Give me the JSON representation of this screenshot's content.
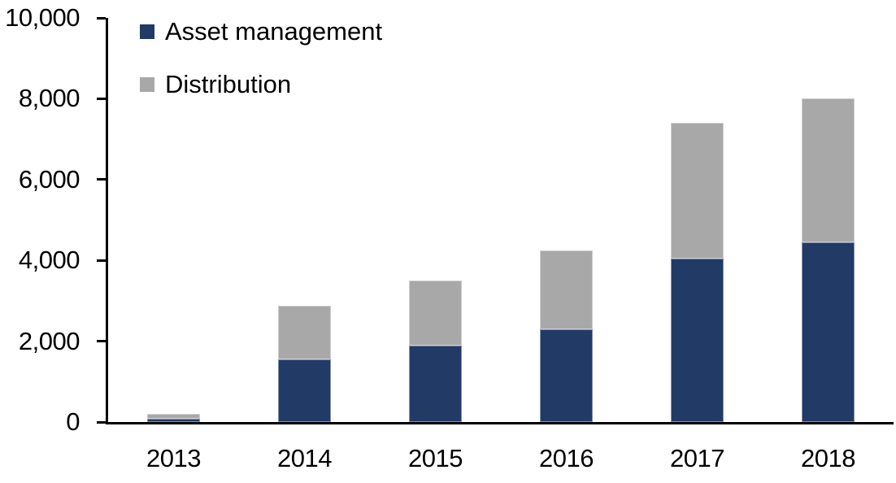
{
  "chart_data": {
    "type": "bar",
    "stacked": true,
    "title": "",
    "xlabel": "",
    "ylabel": "",
    "grid": false,
    "legend_position": "top-left",
    "categories": [
      "2013",
      "2014",
      "2015",
      "2016",
      "2017",
      "2018"
    ],
    "series": [
      {
        "name": "Asset management",
        "color": "#213A66",
        "values": [
          90,
          1550,
          1900,
          2300,
          4050,
          4450
        ]
      },
      {
        "name": "Distribution",
        "color": "#A8A8A8",
        "values": [
          120,
          1325,
          1600,
          1950,
          3350,
          3550
        ]
      }
    ],
    "totals": [
      210,
      2875,
      3500,
      4250,
      7400,
      8000
    ],
    "ylim": [
      0,
      10000
    ],
    "yticks": [
      {
        "value": 0,
        "label": "0"
      },
      {
        "value": 2000,
        "label": "2,000"
      },
      {
        "value": 4000,
        "label": "4,000"
      },
      {
        "value": 6000,
        "label": "6,000"
      },
      {
        "value": 8000,
        "label": "8,000"
      },
      {
        "value": 10000,
        "label": "10,000"
      }
    ],
    "axis_color": "#000000",
    "background_color": "#FFFFFF"
  }
}
